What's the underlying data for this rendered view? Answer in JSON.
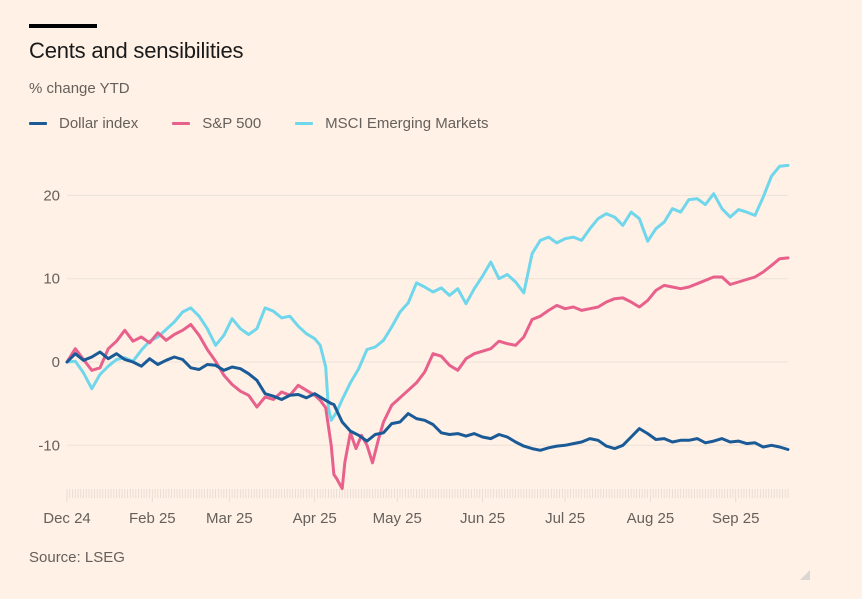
{
  "header": {
    "title": "Cents and sensibilities",
    "subtitle": "% change YTD"
  },
  "legend": [
    {
      "label": "Dollar index",
      "color": "#1a5a96"
    },
    {
      "label": "S&P 500",
      "color": "#e8618c"
    },
    {
      "label": "MSCI Emerging Markets",
      "color": "#6fd6ec"
    }
  ],
  "footer": {
    "source": "Source: LSEG"
  },
  "chart_data": {
    "type": "line",
    "title": "Cents and sensibilities",
    "subtitle": "% change YTD",
    "xlabel": "",
    "ylabel": "% change YTD",
    "x_unit": "days since 2024-12-31",
    "xlim": [
      0,
      262
    ],
    "ylim": [
      -16,
      26
    ],
    "yticks": [
      20,
      10,
      0,
      -10
    ],
    "ytick_labels": [
      "20",
      "10",
      "0",
      "-10"
    ],
    "xticks": [
      0,
      31,
      59,
      90,
      120,
      151,
      181,
      212,
      243
    ],
    "xtick_labels": [
      "Dec 24",
      "Feb 25",
      "Mar 25",
      "Apr 25",
      "May 25",
      "Jun 25",
      "Jul 25",
      "Aug 25",
      "Sep 25"
    ],
    "grid": true,
    "legend_position": "top-left",
    "source": "Source: LSEG",
    "series": [
      {
        "name": "Dollar index",
        "color": "#1a5a96",
        "x": [
          0,
          3,
          6,
          9,
          12,
          15,
          18,
          21,
          24,
          27,
          30,
          33,
          36,
          39,
          42,
          45,
          48,
          51,
          54,
          57,
          60,
          63,
          66,
          69,
          72,
          75,
          78,
          81,
          84,
          87,
          90,
          93,
          96,
          97,
          100,
          103,
          106,
          109,
          112,
          115,
          118,
          121,
          124,
          127,
          130,
          133,
          136,
          139,
          142,
          145,
          148,
          151,
          154,
          157,
          160,
          163,
          166,
          169,
          172,
          175,
          178,
          181,
          184,
          187,
          190,
          193,
          196,
          199,
          202,
          205,
          208,
          211,
          214,
          217,
          220,
          223,
          226,
          229,
          232,
          235,
          238,
          241,
          244,
          247,
          250,
          253,
          256,
          259,
          262
        ],
        "values": [
          0,
          1.0,
          0.2,
          0.6,
          1.2,
          0.4,
          1.0,
          0.3,
          0.0,
          -0.5,
          0.4,
          -0.3,
          0.2,
          0.6,
          0.3,
          -0.7,
          -0.9,
          -0.3,
          -0.4,
          -1.0,
          -0.6,
          -0.8,
          -1.4,
          -2.2,
          -3.8,
          -4.1,
          -4.5,
          -4.0,
          -3.9,
          -4.3,
          -3.8,
          -4.4,
          -5.0,
          -5.1,
          -7.2,
          -8.3,
          -8.8,
          -9.5,
          -8.7,
          -8.5,
          -7.4,
          -7.2,
          -6.2,
          -6.8,
          -7.0,
          -7.5,
          -8.5,
          -8.7,
          -8.6,
          -8.9,
          -8.6,
          -9.0,
          -9.2,
          -8.7,
          -9.0,
          -9.6,
          -10.1,
          -10.4,
          -10.6,
          -10.3,
          -10.1,
          -10.0,
          -9.8,
          -9.6,
          -9.2,
          -9.4,
          -10.1,
          -10.4,
          -10.0,
          -9.0,
          -8.0,
          -8.6,
          -9.3,
          -9.2,
          -9.6,
          -9.4,
          -9.4,
          -9.2,
          -9.7,
          -9.5,
          -9.2,
          -9.6,
          -9.5,
          -9.8,
          -9.7,
          -10.2,
          -10.0,
          -10.2,
          -10.5
        ]
      },
      {
        "name": "S&P 500",
        "color": "#e8618c",
        "x": [
          0,
          3,
          6,
          9,
          12,
          15,
          18,
          21,
          24,
          27,
          30,
          33,
          36,
          39,
          42,
          45,
          48,
          51,
          54,
          57,
          60,
          63,
          66,
          69,
          72,
          75,
          78,
          81,
          84,
          87,
          90,
          92,
          94,
          96,
          97,
          98,
          100,
          101,
          103,
          105,
          107,
          109,
          111,
          113,
          115,
          118,
          121,
          124,
          127,
          130,
          133,
          136,
          139,
          142,
          145,
          148,
          151,
          154,
          157,
          160,
          163,
          166,
          169,
          172,
          175,
          178,
          181,
          184,
          187,
          190,
          193,
          196,
          199,
          202,
          205,
          208,
          211,
          214,
          217,
          220,
          223,
          226,
          229,
          232,
          235,
          238,
          241,
          244,
          247,
          250,
          253,
          256,
          259,
          262
        ],
        "values": [
          0,
          1.6,
          0.3,
          -1.0,
          -0.7,
          1.6,
          2.5,
          3.8,
          2.5,
          3.0,
          2.3,
          3.5,
          2.6,
          3.3,
          3.8,
          4.5,
          3.2,
          1.5,
          0.1,
          -1.6,
          -2.7,
          -3.5,
          -4.0,
          -5.4,
          -4.2,
          -4.5,
          -3.6,
          -4.0,
          -2.8,
          -3.4,
          -4.0,
          -4.6,
          -5.5,
          -10.0,
          -13.5,
          -14.0,
          -15.2,
          -12.0,
          -8.5,
          -10.4,
          -8.8,
          -10.0,
          -12.1,
          -9.5,
          -7.2,
          -5.2,
          -4.3,
          -3.4,
          -2.5,
          -1.2,
          1.0,
          0.7,
          -0.4,
          -1.0,
          0.4,
          1.0,
          1.3,
          1.6,
          2.5,
          2.2,
          2.0,
          3.0,
          5.1,
          5.5,
          6.2,
          6.8,
          6.4,
          6.6,
          6.2,
          6.4,
          6.6,
          7.2,
          7.6,
          7.7,
          7.2,
          6.6,
          7.4,
          8.6,
          9.2,
          9.0,
          8.8,
          9.0,
          9.4,
          9.8,
          10.2,
          10.2,
          9.3,
          9.6,
          9.9,
          10.2,
          10.8,
          11.6,
          12.4,
          12.5
        ]
      },
      {
        "name": "MSCI Emerging Markets",
        "color": "#6fd6ec",
        "x": [
          0,
          3,
          6,
          9,
          12,
          15,
          18,
          21,
          24,
          27,
          30,
          33,
          36,
          39,
          42,
          45,
          48,
          51,
          54,
          57,
          60,
          63,
          66,
          69,
          72,
          75,
          78,
          81,
          84,
          87,
          90,
          92,
          94,
          95,
          96,
          98,
          100,
          103,
          106,
          109,
          112,
          115,
          118,
          121,
          124,
          127,
          130,
          133,
          136,
          139,
          142,
          145,
          148,
          151,
          154,
          157,
          160,
          163,
          166,
          169,
          172,
          175,
          178,
          181,
          184,
          187,
          190,
          193,
          196,
          199,
          202,
          205,
          208,
          211,
          214,
          217,
          220,
          223,
          226,
          229,
          232,
          235,
          238,
          241,
          244,
          247,
          250,
          253,
          256,
          259,
          262
        ],
        "values": [
          0,
          0.1,
          -1.3,
          -3.2,
          -1.5,
          -0.5,
          0.3,
          0.5,
          0.1,
          1.4,
          2.5,
          3.0,
          3.9,
          4.8,
          6.0,
          6.5,
          5.5,
          4.0,
          2.0,
          3.2,
          5.2,
          4.0,
          3.3,
          4.0,
          6.5,
          6.1,
          5.3,
          5.5,
          4.3,
          3.4,
          2.8,
          2.0,
          -0.6,
          -5.5,
          -7.0,
          -6.0,
          -4.5,
          -2.5,
          -0.8,
          1.5,
          1.8,
          2.6,
          4.2,
          6.0,
          7.1,
          9.5,
          9.0,
          8.4,
          8.9,
          8.0,
          8.8,
          7.0,
          8.8,
          10.3,
          12.0,
          10.0,
          10.5,
          9.6,
          8.3,
          13.0,
          14.6,
          15.0,
          14.3,
          14.8,
          15.0,
          14.6,
          16.0,
          17.2,
          17.8,
          17.4,
          16.4,
          18.0,
          17.2,
          14.5,
          16.0,
          16.8,
          18.4,
          18.0,
          19.5,
          19.6,
          18.9,
          20.2,
          18.4,
          17.4,
          18.3,
          18.0,
          17.6,
          19.8,
          22.3,
          23.5,
          23.6
        ]
      }
    ]
  }
}
